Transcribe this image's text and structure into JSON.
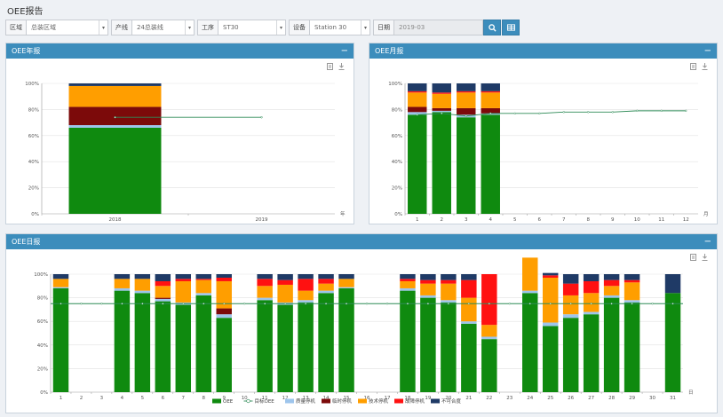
{
  "page_title": "OEE报告",
  "toolbar": {
    "area_label": "区域",
    "area_value": "总装区域",
    "line_label": "产线",
    "line_value": "24总装线",
    "process_label": "工序",
    "process_value": "ST30",
    "device_label": "设备",
    "device_value": "Station 30",
    "date_label": "日期",
    "date_value": "2019-03"
  },
  "colors": {
    "oee": "#0f8a0f",
    "target": "#2e8b57",
    "quality": "#9ec5ec",
    "startup": "#7c0a0a",
    "tech": "#ff9e00",
    "fault": "#ff1111",
    "uncut": "#1f3a66",
    "header": "#3c8dbc"
  },
  "legend": [
    "OEE",
    "目标OEE",
    "质量停机",
    "临时停机",
    "技术停机",
    "故障停机",
    "不可合度"
  ],
  "panels": {
    "yearly": {
      "title": "OEE年报"
    },
    "monthly": {
      "title": "OEE月报"
    },
    "daily": {
      "title": "OEE日报"
    }
  },
  "chart_data": [
    {
      "name": "yearly",
      "type": "bar",
      "stacked": true,
      "categories": [
        "2018",
        "2019"
      ],
      "x_unit": "年",
      "ylim": [
        0,
        100
      ],
      "y_ticks": [
        "0%",
        "20%",
        "40%",
        "60%",
        "80%",
        "100%"
      ],
      "target": [
        74,
        74
      ],
      "bars": [
        [
          66,
          2,
          14,
          16,
          0,
          2
        ],
        null
      ]
    },
    {
      "name": "monthly",
      "type": "bar",
      "stacked": true,
      "categories": [
        "1",
        "2",
        "3",
        "4",
        "5",
        "6",
        "7",
        "8",
        "9",
        "10",
        "11",
        "12"
      ],
      "x_unit": "月",
      "ylim": [
        0,
        100
      ],
      "y_ticks": [
        "0%",
        "20%",
        "40%",
        "60%",
        "80%",
        "100%"
      ],
      "target": [
        76,
        77,
        75,
        77,
        77,
        77,
        78,
        78,
        78,
        79,
        79,
        79
      ],
      "bars": [
        [
          76,
          2,
          4,
          11,
          1,
          6
        ],
        [
          78,
          1,
          2,
          11,
          1,
          7
        ],
        [
          74,
          2,
          5,
          12,
          1,
          6
        ],
        [
          76,
          1,
          4,
          12,
          1,
          6
        ],
        null,
        null,
        null,
        null,
        null,
        null,
        null,
        null
      ]
    },
    {
      "name": "daily",
      "type": "bar",
      "stacked": true,
      "categories": [
        "1",
        "2",
        "3",
        "4",
        "5",
        "6",
        "7",
        "8",
        "9",
        "10",
        "11",
        "12",
        "13",
        "14",
        "15",
        "16",
        "17",
        "18",
        "19",
        "20",
        "21",
        "22",
        "23",
        "24",
        "25",
        "26",
        "27",
        "28",
        "29",
        "30",
        "31"
      ],
      "x_unit": "日",
      "ylim": [
        0,
        100
      ],
      "y_ticks": [
        "0%",
        "20%",
        "40%",
        "60%",
        "80%",
        "100%"
      ],
      "target": 75,
      "bars": [
        [
          88,
          1,
          0,
          7,
          0,
          4
        ],
        null,
        null,
        [
          86,
          2,
          0,
          8,
          0,
          4
        ],
        [
          84,
          2,
          0,
          10,
          0,
          4
        ],
        [
          77,
          2,
          1,
          10,
          4,
          6
        ],
        [
          74,
          2,
          0,
          18,
          2,
          4
        ],
        [
          82,
          2,
          0,
          11,
          1,
          4
        ],
        [
          63,
          3,
          5,
          23,
          3,
          3
        ],
        null,
        [
          78,
          2,
          0,
          10,
          6,
          4
        ],
        [
          74,
          2,
          0,
          15,
          4,
          5
        ],
        [
          76,
          2,
          0,
          8,
          10,
          4
        ],
        [
          84,
          2,
          0,
          6,
          4,
          4
        ],
        [
          88,
          1,
          0,
          7,
          0,
          4
        ],
        null,
        null,
        [
          86,
          2,
          0,
          6,
          2,
          4
        ],
        [
          80,
          2,
          0,
          10,
          3,
          5
        ],
        [
          76,
          2,
          0,
          14,
          3,
          5
        ],
        [
          58,
          2,
          0,
          20,
          15,
          5
        ],
        [
          45,
          2,
          0,
          10,
          43,
          0
        ],
        null,
        [
          84,
          2,
          0,
          28,
          0,
          0
        ],
        [
          56,
          3,
          0,
          38,
          2,
          2
        ],
        [
          63,
          3,
          0,
          16,
          10,
          8
        ],
        [
          66,
          2,
          0,
          16,
          10,
          6
        ],
        [
          80,
          2,
          0,
          8,
          5,
          5
        ],
        [
          76,
          2,
          0,
          15,
          2,
          5
        ],
        null,
        [
          84,
          0,
          0,
          0,
          0,
          16
        ]
      ]
    }
  ]
}
